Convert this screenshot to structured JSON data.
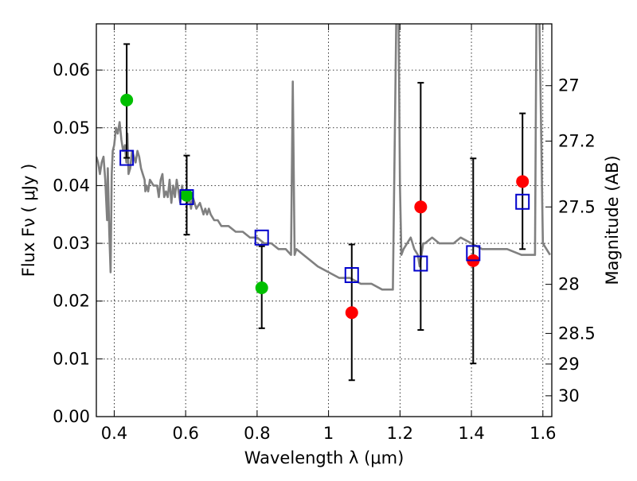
{
  "chart_data": {
    "type": "scatter",
    "xlabel": "Wavelength  λ (μm)",
    "ylabel": "Flux  Fν  ( μJy )",
    "ylabel_right": "Magnitude (AB)",
    "xlim": [
      0.35,
      1.625
    ],
    "ylim": [
      0.0,
      0.068
    ],
    "grid": true,
    "x_ticks": [
      0.4,
      0.6,
      0.8,
      1.0,
      1.2,
      1.4,
      1.6
    ],
    "x_tick_labels": [
      "0.4",
      "0.6",
      "0.8",
      "1",
      "1.2",
      "1.4",
      "1.6"
    ],
    "y_ticks": [
      0.0,
      0.01,
      0.02,
      0.03,
      0.04,
      0.05,
      0.06
    ],
    "y_tick_labels": [
      "0.00",
      "0.01",
      "0.02",
      "0.03",
      "0.04",
      "0.05",
      "0.06"
    ],
    "right_ticks": [
      {
        "label": "27",
        "flux": 0.0573
      },
      {
        "label": "27.2",
        "flux": 0.0477
      },
      {
        "label": "27.5",
        "flux": 0.0363
      },
      {
        "label": "28",
        "flux": 0.0229
      },
      {
        "label": "28.5",
        "flux": 0.0144
      },
      {
        "label": "29",
        "flux": 0.0091
      },
      {
        "label": "30",
        "flux": 0.0036
      }
    ],
    "colors": {
      "model": "#808080",
      "green": "#00bf00",
      "red": "#ff0000",
      "square": "#0000cc",
      "errorbar": "#000000"
    },
    "series": [
      {
        "name": "model SED",
        "kind": "line",
        "x": [
          0.35,
          0.355,
          0.36,
          0.365,
          0.37,
          0.375,
          0.38,
          0.382,
          0.386,
          0.39,
          0.393,
          0.396,
          0.4,
          0.405,
          0.41,
          0.415,
          0.42,
          0.425,
          0.43,
          0.434,
          0.437,
          0.44,
          0.445,
          0.45,
          0.455,
          0.46,
          0.465,
          0.47,
          0.475,
          0.48,
          0.485,
          0.487,
          0.49,
          0.495,
          0.5,
          0.51,
          0.52,
          0.525,
          0.53,
          0.535,
          0.54,
          0.545,
          0.55,
          0.555,
          0.56,
          0.565,
          0.57,
          0.575,
          0.58,
          0.585,
          0.59,
          0.595,
          0.6,
          0.605,
          0.61,
          0.615,
          0.62,
          0.63,
          0.64,
          0.65,
          0.655,
          0.66,
          0.665,
          0.67,
          0.68,
          0.69,
          0.7,
          0.72,
          0.74,
          0.76,
          0.78,
          0.8,
          0.82,
          0.84,
          0.86,
          0.88,
          0.895,
          0.9,
          0.905,
          0.91,
          0.93,
          0.95,
          0.97,
          1.0,
          1.03,
          1.06,
          1.09,
          1.12,
          1.15,
          1.18,
          1.19,
          1.196,
          1.2,
          1.204,
          1.21,
          1.22,
          1.23,
          1.24,
          1.25,
          1.255,
          1.26,
          1.265,
          1.27,
          1.29,
          1.31,
          1.33,
          1.35,
          1.37,
          1.4,
          1.43,
          1.46,
          1.5,
          1.54,
          1.57,
          1.578,
          1.582,
          1.59,
          1.6,
          1.61,
          1.62
        ],
        "y": [
          0.045,
          0.044,
          0.042,
          0.044,
          0.045,
          0.041,
          0.034,
          0.043,
          0.032,
          0.025,
          0.042,
          0.046,
          0.047,
          0.05,
          0.049,
          0.051,
          0.048,
          0.046,
          0.047,
          0.044,
          0.049,
          0.042,
          0.043,
          0.046,
          0.045,
          0.044,
          0.046,
          0.045,
          0.043,
          0.042,
          0.041,
          0.039,
          0.04,
          0.039,
          0.041,
          0.04,
          0.04,
          0.038,
          0.041,
          0.042,
          0.038,
          0.039,
          0.038,
          0.041,
          0.037,
          0.04,
          0.038,
          0.041,
          0.039,
          0.037,
          0.04,
          0.038,
          0.039,
          0.037,
          0.038,
          0.036,
          0.038,
          0.036,
          0.037,
          0.035,
          0.036,
          0.035,
          0.036,
          0.035,
          0.034,
          0.034,
          0.033,
          0.033,
          0.032,
          0.032,
          0.031,
          0.031,
          0.03,
          0.03,
          0.029,
          0.029,
          0.028,
          0.058,
          0.028,
          0.029,
          0.028,
          0.027,
          0.026,
          0.025,
          0.024,
          0.024,
          0.023,
          0.023,
          0.022,
          0.022,
          0.07,
          0.07,
          0.04,
          0.028,
          0.029,
          0.03,
          0.031,
          0.029,
          0.028,
          0.026,
          0.028,
          0.03,
          0.03,
          0.031,
          0.03,
          0.03,
          0.03,
          0.031,
          0.03,
          0.029,
          0.029,
          0.029,
          0.028,
          0.028,
          0.028,
          0.07,
          0.07,
          0.03,
          0.029,
          0.028
        ]
      },
      {
        "name": "green points",
        "kind": "circle",
        "x": [
          0.435,
          0.603,
          0.813
        ],
        "y": [
          0.0548,
          0.0383,
          0.0223
        ]
      },
      {
        "name": "red points",
        "kind": "circle",
        "x": [
          1.065,
          1.258,
          1.405,
          1.543
        ],
        "y": [
          0.018,
          0.0363,
          0.027,
          0.0407
        ]
      },
      {
        "name": "model photometry",
        "kind": "square",
        "x": [
          0.435,
          0.603,
          0.813,
          1.065,
          1.258,
          1.405,
          1.543
        ],
        "y": [
          0.0448,
          0.038,
          0.031,
          0.0245,
          0.0265,
          0.0283,
          0.0372
        ]
      }
    ],
    "errorbars": [
      {
        "x": 0.435,
        "low": 0.0448,
        "high": 0.0645
      },
      {
        "x": 0.603,
        "low": 0.0315,
        "high": 0.0452
      },
      {
        "x": 0.813,
        "low": 0.0153,
        "high": 0.0295
      },
      {
        "x": 1.065,
        "low": 0.0063,
        "high": 0.0298
      },
      {
        "x": 1.258,
        "low": 0.015,
        "high": 0.0578
      },
      {
        "x": 1.405,
        "low": 0.0092,
        "high": 0.0447
      },
      {
        "x": 1.543,
        "low": 0.029,
        "high": 0.0525
      }
    ]
  }
}
